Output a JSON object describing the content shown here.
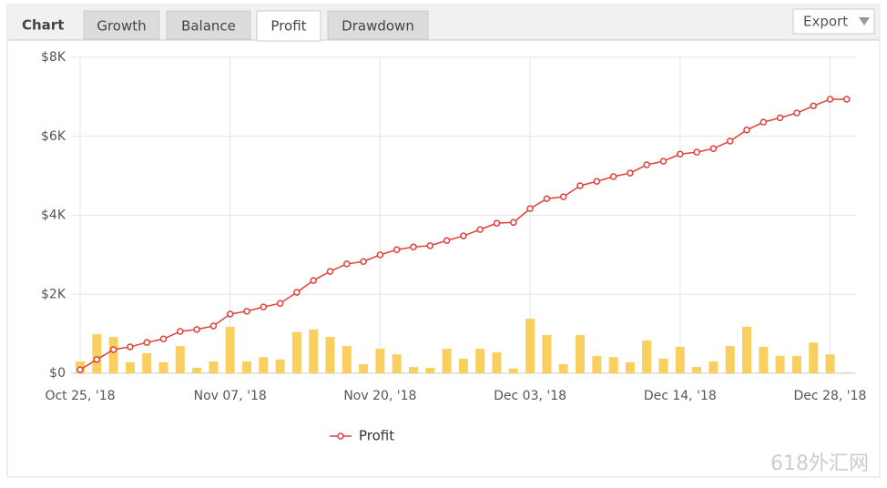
{
  "header": {
    "label": "Chart",
    "tabs": [
      "Growth",
      "Balance",
      "Profit",
      "Drawdown"
    ],
    "active_tab": 2,
    "export": "Export"
  },
  "watermark": "618外汇网",
  "chart_data": {
    "type": "combo",
    "categories": [
      "Oct 25, '18",
      null,
      null,
      null,
      null,
      null,
      null,
      null,
      null,
      "Nov 07, '18",
      null,
      null,
      null,
      null,
      null,
      null,
      null,
      null,
      "Nov 20, '18",
      null,
      null,
      null,
      null,
      null,
      null,
      null,
      null,
      "Dec 03, '18",
      null,
      null,
      null,
      null,
      null,
      null,
      null,
      null,
      "Dec 14, '18",
      null,
      null,
      null,
      null,
      null,
      null,
      null,
      null,
      "Dec 28, '18",
      null
    ],
    "series": [
      {
        "type": "bar",
        "color": "#f9d05f",
        "values": [
          300,
          990,
          920,
          280,
          510,
          280,
          690,
          140,
          300,
          1180,
          300,
          410,
          350,
          1040,
          1110,
          920,
          690,
          230,
          620,
          480,
          160,
          140,
          620,
          370,
          620,
          530,
          120,
          1380,
          970,
          230,
          970,
          440,
          410,
          280,
          830,
          370,
          670,
          160,
          300,
          690,
          1180,
          670,
          440,
          440,
          780,
          480,
          20
        ]
      },
      {
        "type": "line",
        "name": "Profit",
        "color": "#e0403a",
        "values": [
          90,
          350,
          600,
          670,
          780,
          870,
          1060,
          1110,
          1200,
          1500,
          1570,
          1680,
          1770,
          2050,
          2350,
          2580,
          2770,
          2830,
          3000,
          3130,
          3200,
          3230,
          3360,
          3480,
          3640,
          3800,
          3820,
          4170,
          4420,
          4470,
          4750,
          4860,
          4980,
          5070,
          5280,
          5370,
          5550,
          5600,
          5690,
          5880,
          6160,
          6360,
          6470,
          6590,
          6770,
          6940,
          6940
        ]
      }
    ],
    "ylim": [
      0,
      8000
    ],
    "yticks": [
      {
        "value": 0,
        "label": "$0"
      },
      {
        "value": 2000,
        "label": "$2K"
      },
      {
        "value": 4000,
        "label": "$4K"
      },
      {
        "value": 6000,
        "label": "$6K"
      },
      {
        "value": 8000,
        "label": "$8K"
      }
    ],
    "grid": true,
    "legend": "bottom"
  }
}
